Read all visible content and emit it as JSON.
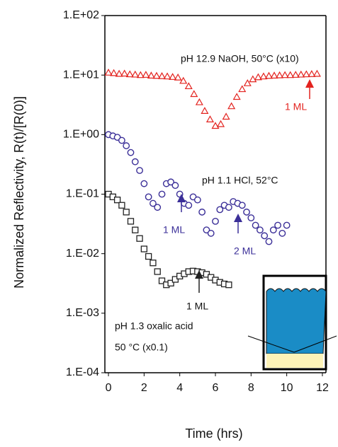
{
  "chart_data": {
    "type": "scatter",
    "log_y": true,
    "y_label": "Normalized Reflectivity, R(t)/[R(0)]",
    "x_label": "Time (hrs)",
    "xlim": [
      -0.2,
      12.2
    ],
    "xticks": [
      0,
      2,
      4,
      6,
      8,
      10,
      12
    ],
    "ylim": [
      0.0001,
      100
    ],
    "yticks": [
      {
        "value": 0.0001,
        "label": "1.E-04"
      },
      {
        "value": 0.001,
        "label": "1.E-03"
      },
      {
        "value": 0.01,
        "label": "1.E-02"
      },
      {
        "value": 0.1,
        "label": "1.E-01"
      },
      {
        "value": 1,
        "label": "1.E+00"
      },
      {
        "value": 10,
        "label": "1.E+01"
      },
      {
        "value": 100,
        "label": "1.E+02"
      }
    ],
    "series": [
      {
        "marker": "triangle",
        "color": "#e3231f",
        "x": [
          0,
          0.3,
          0.6,
          0.9,
          1.2,
          1.5,
          1.8,
          2.1,
          2.4,
          2.7,
          3,
          3.3,
          3.6,
          3.9,
          4.2,
          4.5,
          4.8,
          5.1,
          5.4,
          5.7,
          6,
          6.3,
          6.6,
          6.9,
          7.2,
          7.5,
          7.8,
          8.1,
          8.4,
          8.7,
          9,
          9.3,
          9.6,
          9.9,
          10.2,
          10.5,
          10.8,
          11.1,
          11.4,
          11.7
        ],
        "values": [
          11,
          10.8,
          10.5,
          10.6,
          10.3,
          10.2,
          10,
          10.1,
          9.8,
          9.7,
          9.6,
          9.5,
          9.3,
          9.1,
          8,
          6.5,
          4.8,
          3.5,
          2.5,
          1.8,
          1.4,
          1.5,
          2,
          3,
          4.3,
          5.8,
          7.3,
          8.5,
          9.2,
          9.5,
          9.7,
          9.8,
          9.9,
          10,
          10,
          10.1,
          10.2,
          10.3,
          10.4,
          10.5
        ]
      },
      {
        "marker": "circle",
        "color": "#3b2f98",
        "x": [
          0,
          0.25,
          0.5,
          0.75,
          1,
          1.25,
          1.5,
          1.75,
          2,
          2.25,
          2.5,
          2.75,
          3,
          3.25,
          3.5,
          3.75,
          4,
          4.25,
          4.5,
          4.75,
          5,
          5.25,
          5.5,
          5.75,
          6,
          6.25,
          6.5,
          6.75,
          7,
          7.25,
          7.5,
          7.75,
          8,
          8.25,
          8.5,
          8.75,
          9,
          9.25,
          9.5,
          9.75,
          10
        ],
        "values": [
          1,
          0.95,
          0.9,
          0.8,
          0.65,
          0.5,
          0.35,
          0.25,
          0.15,
          0.09,
          0.07,
          0.06,
          0.1,
          0.15,
          0.16,
          0.14,
          0.1,
          0.07,
          0.065,
          0.09,
          0.08,
          0.05,
          0.025,
          0.022,
          0.035,
          0.055,
          0.065,
          0.06,
          0.075,
          0.07,
          0.065,
          0.05,
          0.04,
          0.03,
          0.025,
          0.02,
          0.016,
          0.025,
          0.03,
          0.022,
          0.03
        ]
      },
      {
        "marker": "square",
        "color": "#222222",
        "x": [
          0,
          0.25,
          0.5,
          0.75,
          1,
          1.25,
          1.5,
          1.75,
          2,
          2.25,
          2.5,
          2.75,
          3,
          3.25,
          3.5,
          3.75,
          4,
          4.25,
          4.5,
          4.75,
          5,
          5.25,
          5.5,
          5.75,
          6,
          6.25,
          6.5,
          6.75
        ],
        "values": [
          0.1,
          0.09,
          0.08,
          0.065,
          0.05,
          0.035,
          0.025,
          0.018,
          0.012,
          0.009,
          0.007,
          0.005,
          0.0035,
          0.003,
          0.0032,
          0.0037,
          0.0042,
          0.0046,
          0.005,
          0.0051,
          0.005,
          0.0048,
          0.0045,
          0.004,
          0.0036,
          0.0033,
          0.0031,
          0.003
        ]
      }
    ],
    "annotations": [
      "pH 12.9 NaOH, 50°C (x10)",
      "1 ML",
      "pH 1.1 HCl, 52°C",
      "1 ML",
      "2 ML",
      "1 ML",
      "pH 1.3 oxalic acid",
      "50 °C (x0.1)"
    ]
  }
}
